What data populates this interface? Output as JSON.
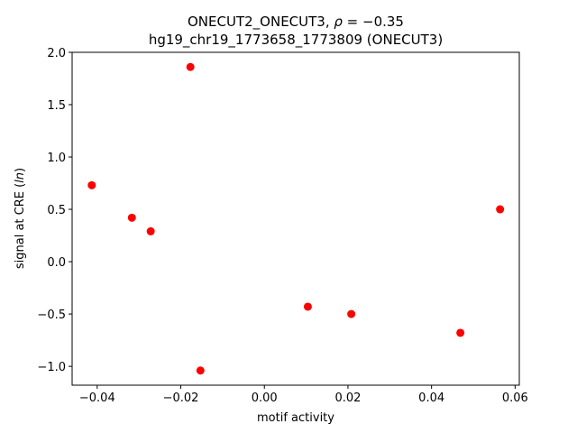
{
  "chart_data": {
    "type": "scatter",
    "title_line1_prefix": "ONECUT2_ONECUT3, ",
    "title_line1_rho": "ρ",
    "title_line1_suffix": " = −0.35",
    "title_line2": "hg19_chr19_1773658_1773809 (ONECUT3)",
    "xlabel": "motif activity",
    "ylabel_prefix": "signal at CRE (",
    "ylabel_italic": "ln",
    "ylabel_suffix": ")",
    "xlim": [
      -0.046,
      0.061
    ],
    "ylim": [
      -1.18,
      2.0
    ],
    "x_ticks": [
      -0.04,
      -0.02,
      0.0,
      0.02,
      0.04,
      0.06
    ],
    "x_tick_labels": [
      "−0.04",
      "−0.02",
      "0.00",
      "0.02",
      "0.04",
      "0.06"
    ],
    "y_ticks": [
      -1.0,
      -0.5,
      0.0,
      0.5,
      1.0,
      1.5,
      2.0
    ],
    "y_tick_labels": [
      "−1.0",
      "−0.5",
      "0.0",
      "0.5",
      "1.0",
      "1.5",
      "2.0"
    ],
    "grid": false,
    "marker_color": "#ff0000",
    "points": [
      {
        "x": -0.0413,
        "y": 0.73
      },
      {
        "x": -0.0317,
        "y": 0.42
      },
      {
        "x": -0.0272,
        "y": 0.29
      },
      {
        "x": -0.0177,
        "y": 1.86
      },
      {
        "x": -0.0153,
        "y": -1.04
      },
      {
        "x": 0.0104,
        "y": -0.43
      },
      {
        "x": 0.0208,
        "y": -0.5
      },
      {
        "x": 0.0469,
        "y": -0.68
      },
      {
        "x": 0.0564,
        "y": 0.5
      }
    ]
  }
}
